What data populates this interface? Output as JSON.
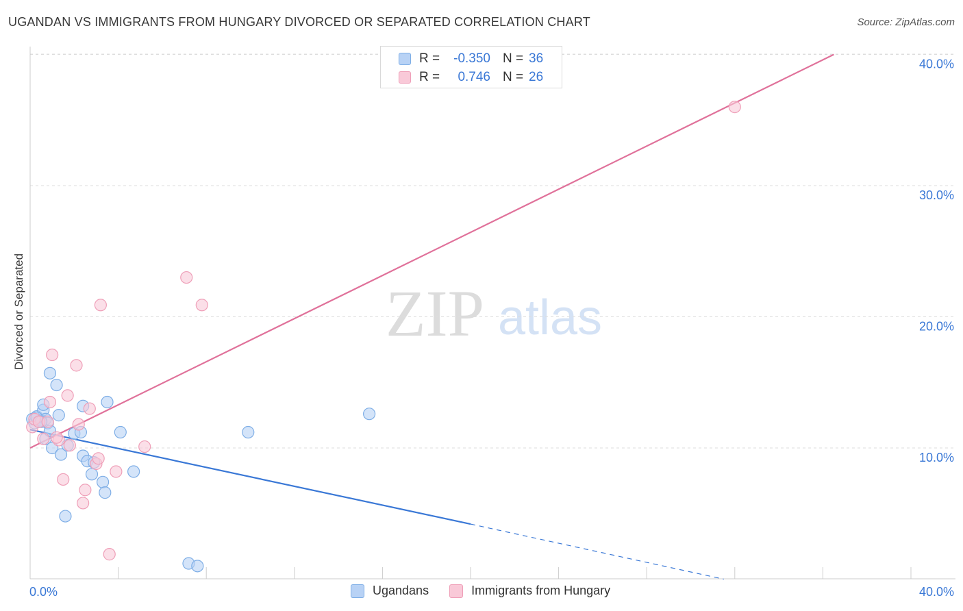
{
  "header": {
    "title": "UGANDAN VS IMMIGRANTS FROM HUNGARY DIVORCED OR SEPARATED CORRELATION CHART",
    "source": "Source: ZipAtlas.com"
  },
  "watermark": {
    "zip": "ZIP",
    "atlas": "atlas"
  },
  "legend": {
    "rows": [
      {
        "r_label": "R =",
        "r_value": "-0.350",
        "n_label": "N =",
        "n_value": "36"
      },
      {
        "r_label": "R =",
        "r_value": "0.746",
        "n_label": "N =",
        "n_value": "26"
      }
    ]
  },
  "bottom_legend": {
    "series_a": "Ugandans",
    "series_b": "Immigrants from Hungary"
  },
  "colors": {
    "blue_fill": "#b8d2f5",
    "blue_stroke": "#7eaee6",
    "blue_line": "#3a78d6",
    "pink_fill": "#f9c9d8",
    "pink_stroke": "#ef9fb8",
    "pink_line": "#e0719a",
    "tick_text": "#3a78d6",
    "grid": "#dddddd"
  },
  "chart_data": {
    "type": "scatter",
    "title": "UGANDAN VS IMMIGRANTS FROM HUNGARY DIVORCED OR SEPARATED CORRELATION CHART",
    "xlabel": "",
    "ylabel": "Divorced or Separated",
    "xlim": [
      0,
      40
    ],
    "ylim": [
      0,
      41
    ],
    "x_tick_labels": [
      {
        "value": 0,
        "label": "0.0%"
      },
      {
        "value": 40,
        "label": "40.0%"
      }
    ],
    "y_tick_labels": [
      {
        "value": 10,
        "label": "10.0%"
      },
      {
        "value": 20,
        "label": "20.0%"
      },
      {
        "value": 30,
        "label": "30.0%"
      },
      {
        "value": 40,
        "label": "40.0%"
      }
    ],
    "grid": true,
    "legend_position": "top-center",
    "series": [
      {
        "name": "Ugandans",
        "color": "blue",
        "r": -0.35,
        "n": 36,
        "points": [
          [
            0.1,
            12.2
          ],
          [
            0.2,
            11.9
          ],
          [
            0.3,
            12.4
          ],
          [
            0.4,
            12.0
          ],
          [
            0.5,
            12.1
          ],
          [
            0.6,
            12.9
          ],
          [
            0.6,
            13.3
          ],
          [
            0.7,
            12.2
          ],
          [
            0.7,
            10.7
          ],
          [
            0.8,
            11.9
          ],
          [
            0.9,
            11.3
          ],
          [
            1.0,
            10.0
          ],
          [
            0.9,
            15.7
          ],
          [
            1.2,
            14.8
          ],
          [
            1.3,
            12.5
          ],
          [
            1.4,
            9.5
          ],
          [
            1.7,
            10.2
          ],
          [
            2.0,
            11.1
          ],
          [
            2.3,
            11.2
          ],
          [
            2.4,
            13.2
          ],
          [
            2.4,
            9.4
          ],
          [
            2.6,
            9.0
          ],
          [
            2.8,
            8.0
          ],
          [
            2.9,
            8.9
          ],
          [
            3.3,
            7.4
          ],
          [
            3.4,
            6.6
          ],
          [
            3.5,
            13.5
          ],
          [
            4.1,
            11.2
          ],
          [
            4.7,
            8.2
          ],
          [
            1.6,
            4.8
          ],
          [
            7.2,
            1.2
          ],
          [
            7.6,
            1.0
          ],
          [
            9.9,
            11.2
          ],
          [
            15.4,
            12.6
          ],
          [
            0.3,
            12.3
          ],
          [
            0.5,
            12.0
          ]
        ]
      },
      {
        "name": "Immigrants from Hungary",
        "color": "pink",
        "r": 0.746,
        "n": 26,
        "points": [
          [
            0.1,
            11.6
          ],
          [
            0.2,
            12.2
          ],
          [
            0.4,
            12.0
          ],
          [
            0.6,
            10.7
          ],
          [
            0.9,
            13.5
          ],
          [
            1.0,
            17.1
          ],
          [
            1.3,
            10.6
          ],
          [
            1.5,
            7.6
          ],
          [
            1.7,
            14.0
          ],
          [
            1.8,
            10.2
          ],
          [
            2.1,
            16.3
          ],
          [
            2.2,
            11.8
          ],
          [
            2.5,
            6.8
          ],
          [
            2.4,
            5.8
          ],
          [
            2.7,
            13.0
          ],
          [
            3.0,
            8.8
          ],
          [
            3.1,
            9.2
          ],
          [
            3.2,
            20.9
          ],
          [
            3.6,
            1.9
          ],
          [
            3.9,
            8.2
          ],
          [
            5.2,
            10.1
          ],
          [
            7.1,
            23.0
          ],
          [
            7.8,
            20.9
          ],
          [
            32.0,
            36.0
          ],
          [
            0.8,
            12.0
          ],
          [
            1.2,
            10.8
          ]
        ]
      }
    ],
    "trend_lines": [
      {
        "series": "Ugandans",
        "x_start": 0,
        "y_start": 11.4,
        "x_solid_end": 20,
        "y_solid_end": 4.2,
        "x_end": 31.5,
        "y_end": 0,
        "dashed_after_solid": true
      },
      {
        "series": "Immigrants from Hungary",
        "x_start": 0,
        "y_start": 10.0,
        "x_end": 36.5,
        "y_end": 40.0
      }
    ]
  }
}
